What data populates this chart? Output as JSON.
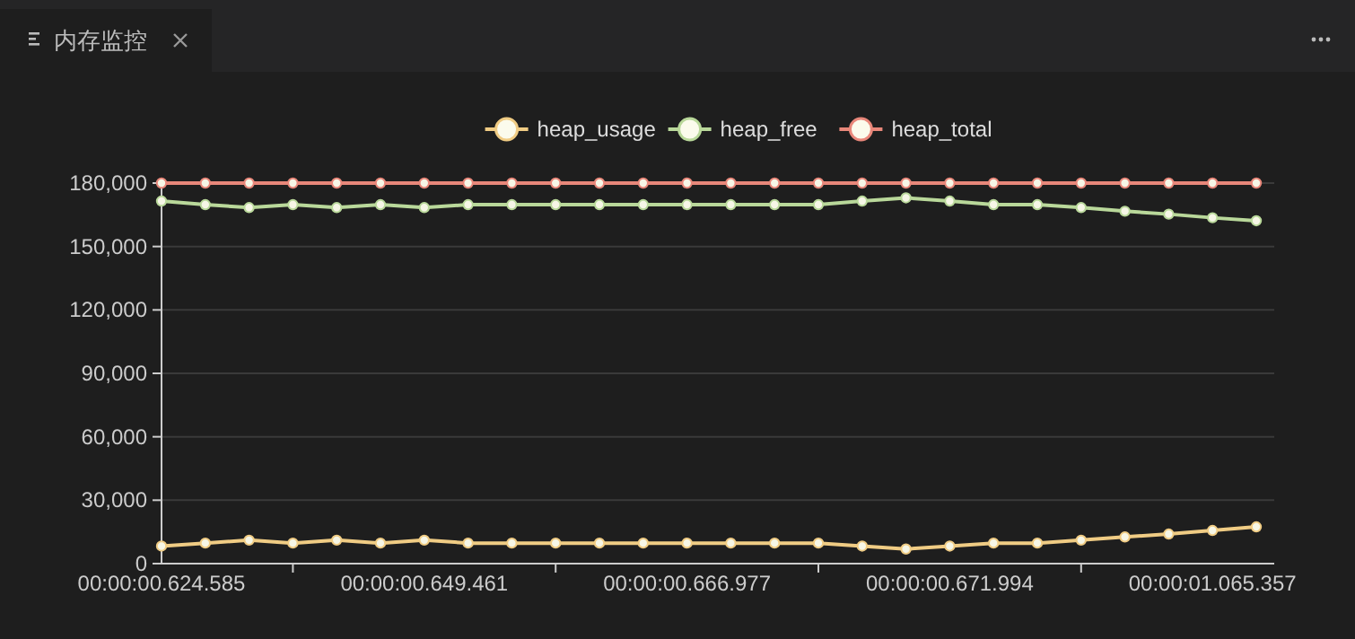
{
  "chart_data": {
    "type": "line",
    "title": "内存监控",
    "categories": [
      "00:00:00.624.585",
      null,
      null,
      null,
      null,
      null,
      "00:00:00.649.461",
      null,
      null,
      null,
      null,
      null,
      "00:00:00.666.977",
      null,
      null,
      null,
      null,
      null,
      "00:00:00.671.994",
      null,
      null,
      null,
      null,
      null,
      "00:00:01.065.357",
      null
    ],
    "series": [
      {
        "name": "heap_usage",
        "color": "#f0cc84",
        "values": [
          8300,
          9700,
          11100,
          9700,
          11100,
          9700,
          11100,
          9700,
          9700,
          9700,
          9700,
          9700,
          9700,
          9700,
          9700,
          9700,
          8300,
          6900,
          8300,
          9700,
          9700,
          11100,
          12600,
          14000,
          15700,
          17400
        ]
      },
      {
        "name": "heap_free",
        "color": "#b9d89a",
        "values": [
          171500,
          169800,
          168400,
          169800,
          168400,
          169800,
          168400,
          169800,
          169800,
          169800,
          169800,
          169800,
          169800,
          169800,
          169800,
          169800,
          171500,
          173000,
          171500,
          169800,
          169800,
          168400,
          166700,
          165300,
          163600,
          162200
        ]
      },
      {
        "name": "heap_total",
        "color": "#e8877a",
        "values": [
          180000,
          180000,
          180000,
          180000,
          180000,
          180000,
          180000,
          180000,
          180000,
          180000,
          180000,
          180000,
          180000,
          180000,
          180000,
          180000,
          180000,
          180000,
          180000,
          180000,
          180000,
          180000,
          180000,
          180000,
          180000,
          180000
        ]
      }
    ],
    "ylim": [
      0,
      180000
    ],
    "yticks": [
      {
        "value": 0,
        "label": "0"
      },
      {
        "value": 30000,
        "label": "30,000"
      },
      {
        "value": 60000,
        "label": "60,000"
      },
      {
        "value": 90000,
        "label": "90,000"
      },
      {
        "value": 120000,
        "label": "120,000"
      },
      {
        "value": 150000,
        "label": "150,000"
      },
      {
        "value": 180000,
        "label": "180,000"
      }
    ],
    "grid": "y",
    "legend": "top",
    "marker": "circle",
    "line_style": "solid"
  }
}
